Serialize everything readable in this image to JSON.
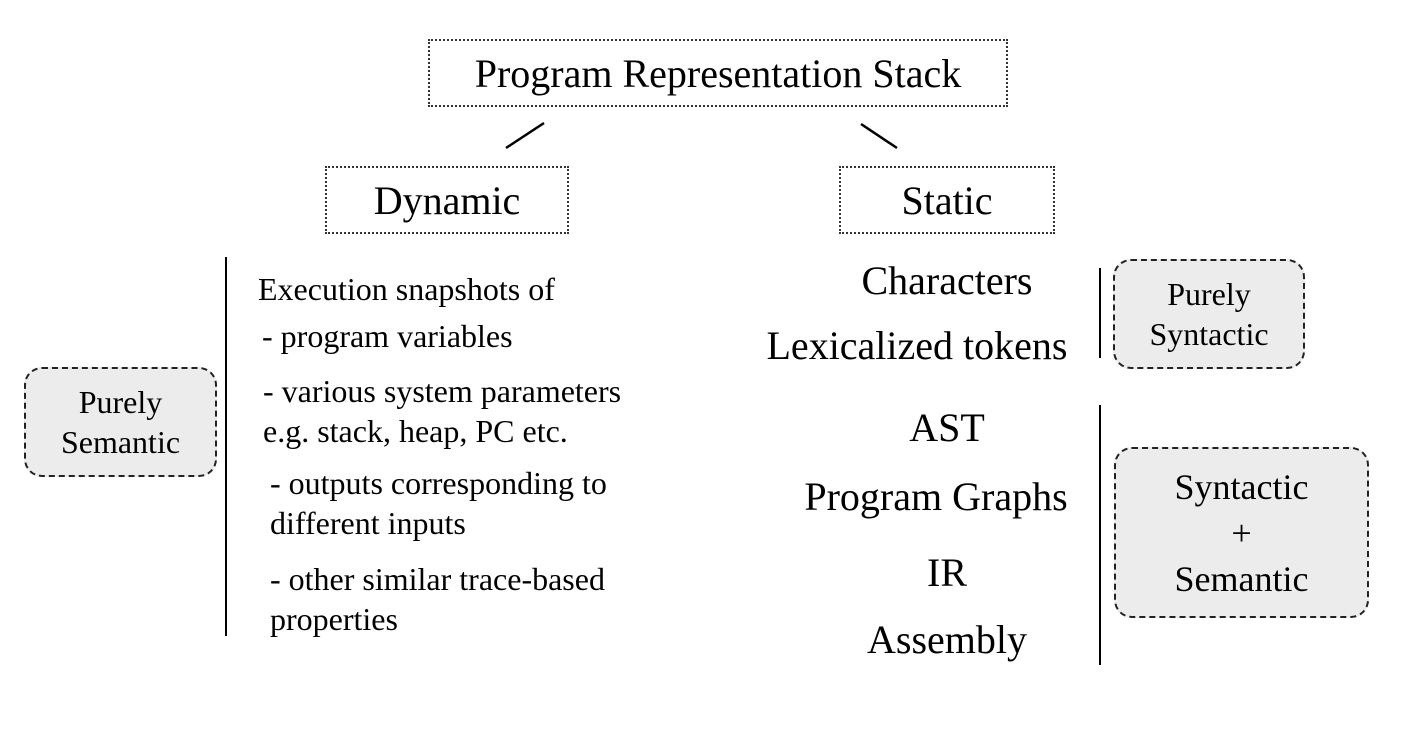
{
  "title": "Program Representation Stack",
  "branches": {
    "dynamic": "Dynamic",
    "static": "Static"
  },
  "dynamic_side": {
    "badge_lines": [
      "Purely",
      "Semantic"
    ],
    "heading": "Execution snapshots of",
    "items": [
      {
        "lines": [
          "- program variables"
        ]
      },
      {
        "lines": [
          "- various system parameters",
          "e.g. stack, heap, PC etc."
        ]
      },
      {
        "lines": [
          "- outputs corresponding to",
          "different inputs"
        ]
      },
      {
        "lines": [
          "- other similar trace-based",
          "properties"
        ]
      }
    ]
  },
  "static_side": {
    "syntactic_levels": [
      "Characters",
      "Lexicalized tokens"
    ],
    "syntactic_badge_lines": [
      "Purely",
      "Syntactic"
    ],
    "semantic_levels": [
      "AST",
      "Program Graphs",
      "IR",
      "Assembly"
    ],
    "semantic_badge_lines": [
      "Syntactic",
      "+",
      "Semantic"
    ]
  },
  "colors": {
    "badge_fill": "#ececec",
    "stroke": "#000000"
  }
}
